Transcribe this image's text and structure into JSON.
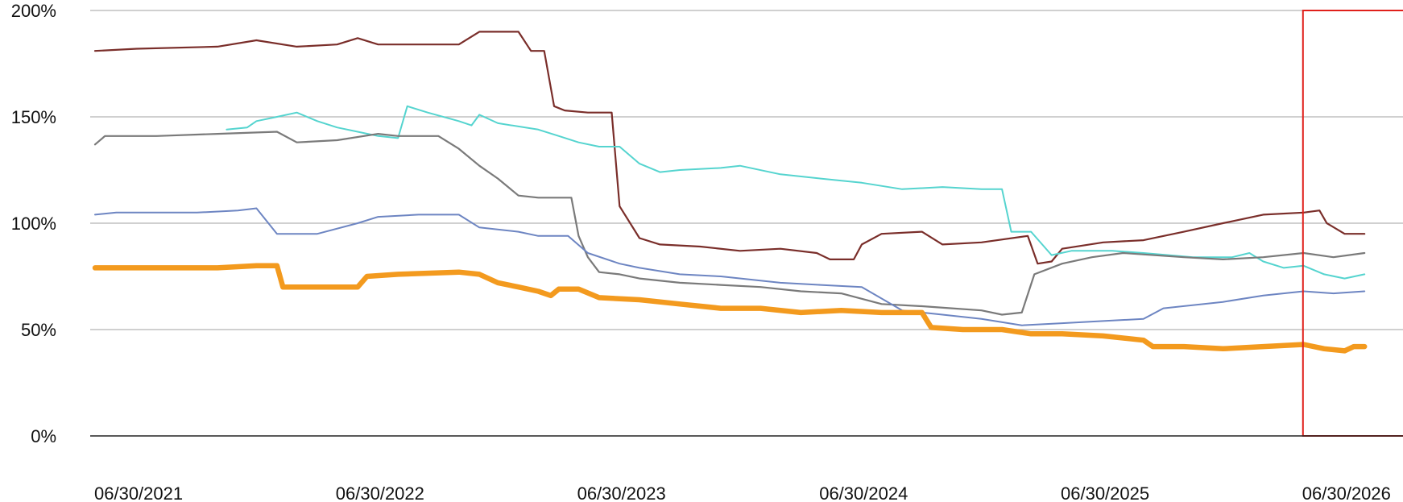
{
  "chart_data": {
    "type": "line",
    "title": "",
    "xlabel": "",
    "ylabel": "",
    "ylim": [
      0,
      200
    ],
    "xlim": [
      "2021-06-30",
      "2026-10-01"
    ],
    "grid": true,
    "y_ticks": [
      {
        "value": 0,
        "label": "0%"
      },
      {
        "value": 50,
        "label": "50%"
      },
      {
        "value": 100,
        "label": "100%"
      },
      {
        "value": 150,
        "label": "150%"
      },
      {
        "value": 200,
        "label": "200%"
      }
    ],
    "x_ticks": [
      {
        "value": "2021-06-30",
        "label": "06/30/2021"
      },
      {
        "value": "2022-06-30",
        "label": "06/30/2022"
      },
      {
        "value": "2023-06-30",
        "label": "06/30/2023"
      },
      {
        "value": "2024-06-30",
        "label": "06/30/2024"
      },
      {
        "value": "2025-06-30",
        "label": "06/30/2025"
      },
      {
        "value": "2026-06-30",
        "label": "06/30/2026"
      }
    ],
    "highlight_region": {
      "start": "2026-06-30",
      "end": "2026-10-01",
      "y_from": 0,
      "y_to": 200,
      "color": "#e0201b"
    },
    "series": [
      {
        "color": "#7a2e2a",
        "width": 2.2,
        "points": [
          [
            "2021-06-30",
            181
          ],
          [
            "2021-09-01",
            182
          ],
          [
            "2022-01-01",
            183
          ],
          [
            "2022-03-01",
            186
          ],
          [
            "2022-05-01",
            183
          ],
          [
            "2022-07-01",
            184
          ],
          [
            "2022-08-01",
            187
          ],
          [
            "2022-09-01",
            184
          ],
          [
            "2022-11-01",
            184
          ],
          [
            "2023-01-01",
            184
          ],
          [
            "2023-02-01",
            190
          ],
          [
            "2023-04-01",
            190
          ],
          [
            "2023-04-20",
            181
          ],
          [
            "2023-05-10",
            181
          ],
          [
            "2023-05-25",
            155
          ],
          [
            "2023-06-10",
            153
          ],
          [
            "2023-07-15",
            152
          ],
          [
            "2023-08-20",
            152
          ],
          [
            "2023-09-01",
            108
          ],
          [
            "2023-10-01",
            93
          ],
          [
            "2023-11-01",
            90
          ],
          [
            "2024-01-01",
            89
          ],
          [
            "2024-03-01",
            87
          ],
          [
            "2024-05-01",
            88
          ],
          [
            "2024-06-25",
            86
          ],
          [
            "2024-07-15",
            83
          ],
          [
            "2024-08-20",
            83
          ],
          [
            "2024-09-01",
            90
          ],
          [
            "2024-10-01",
            95
          ],
          [
            "2024-12-01",
            96
          ],
          [
            "2025-01-01",
            90
          ],
          [
            "2025-03-01",
            91
          ],
          [
            "2025-05-10",
            94
          ],
          [
            "2025-05-25",
            81
          ],
          [
            "2025-06-15",
            82
          ],
          [
            "2025-07-01",
            88
          ],
          [
            "2025-09-01",
            91
          ],
          [
            "2025-11-01",
            92
          ],
          [
            "2026-01-01",
            96
          ],
          [
            "2026-03-01",
            100
          ],
          [
            "2026-05-01",
            104
          ],
          [
            "2026-07-01",
            105
          ],
          [
            "2026-07-25",
            106
          ],
          [
            "2026-08-05",
            100
          ],
          [
            "2026-09-01",
            95
          ],
          [
            "2026-10-01",
            95
          ]
        ]
      },
      {
        "color": "#55d4cf",
        "width": 2.0,
        "points": [
          [
            "2022-01-15",
            144
          ],
          [
            "2022-02-15",
            145
          ],
          [
            "2022-03-01",
            148
          ],
          [
            "2022-04-01",
            150
          ],
          [
            "2022-05-01",
            152
          ],
          [
            "2022-06-01",
            148
          ],
          [
            "2022-07-01",
            145
          ],
          [
            "2022-08-01",
            143
          ],
          [
            "2022-09-01",
            141
          ],
          [
            "2022-10-01",
            140
          ],
          [
            "2022-10-15",
            155
          ],
          [
            "2022-11-15",
            152
          ],
          [
            "2023-01-01",
            148
          ],
          [
            "2023-01-20",
            146
          ],
          [
            "2023-02-01",
            151
          ],
          [
            "2023-03-01",
            147
          ],
          [
            "2023-05-01",
            144
          ],
          [
            "2023-06-01",
            141
          ],
          [
            "2023-07-01",
            138
          ],
          [
            "2023-08-01",
            136
          ],
          [
            "2023-09-01",
            136
          ],
          [
            "2023-10-01",
            128
          ],
          [
            "2023-11-01",
            124
          ],
          [
            "2023-12-01",
            125
          ],
          [
            "2024-02-01",
            126
          ],
          [
            "2024-03-01",
            127
          ],
          [
            "2024-05-01",
            123
          ],
          [
            "2024-07-01",
            121
          ],
          [
            "2024-09-01",
            119
          ],
          [
            "2024-11-01",
            116
          ],
          [
            "2025-01-01",
            117
          ],
          [
            "2025-03-01",
            116
          ],
          [
            "2025-04-01",
            116
          ],
          [
            "2025-04-15",
            96
          ],
          [
            "2025-05-15",
            96
          ],
          [
            "2025-06-15",
            85
          ],
          [
            "2025-07-15",
            87
          ],
          [
            "2025-09-15",
            87
          ],
          [
            "2025-11-01",
            86
          ],
          [
            "2026-01-15",
            84
          ],
          [
            "2026-03-15",
            84
          ],
          [
            "2026-04-10",
            86
          ],
          [
            "2026-05-01",
            82
          ],
          [
            "2026-06-01",
            79
          ],
          [
            "2026-07-01",
            80
          ],
          [
            "2026-08-01",
            76
          ],
          [
            "2026-09-01",
            74
          ],
          [
            "2026-10-01",
            76
          ]
        ]
      },
      {
        "color": "#7a7a7a",
        "width": 2.2,
        "points": [
          [
            "2021-06-30",
            137
          ],
          [
            "2021-07-15",
            141
          ],
          [
            "2021-10-01",
            141
          ],
          [
            "2022-01-01",
            142
          ],
          [
            "2022-04-01",
            143
          ],
          [
            "2022-05-01",
            138
          ],
          [
            "2022-07-01",
            139
          ],
          [
            "2022-09-01",
            142
          ],
          [
            "2022-10-01",
            141
          ],
          [
            "2022-11-01",
            141
          ],
          [
            "2022-12-01",
            141
          ],
          [
            "2023-01-01",
            135
          ],
          [
            "2023-02-01",
            127
          ],
          [
            "2023-03-01",
            121
          ],
          [
            "2023-04-01",
            113
          ],
          [
            "2023-05-01",
            112
          ],
          [
            "2023-06-01",
            112
          ],
          [
            "2023-06-20",
            112
          ],
          [
            "2023-07-01",
            94
          ],
          [
            "2023-07-15",
            84
          ],
          [
            "2023-08-01",
            77
          ],
          [
            "2023-09-01",
            76
          ],
          [
            "2023-10-01",
            74
          ],
          [
            "2023-12-01",
            72
          ],
          [
            "2024-02-01",
            71
          ],
          [
            "2024-04-01",
            70
          ],
          [
            "2024-06-01",
            68
          ],
          [
            "2024-08-01",
            67
          ],
          [
            "2024-10-01",
            62
          ],
          [
            "2024-12-01",
            61
          ],
          [
            "2025-01-15",
            60
          ],
          [
            "2025-03-01",
            59
          ],
          [
            "2025-04-01",
            57
          ],
          [
            "2025-05-01",
            58
          ],
          [
            "2025-05-20",
            76
          ],
          [
            "2025-07-01",
            81
          ],
          [
            "2025-08-15",
            84
          ],
          [
            "2025-10-01",
            86
          ],
          [
            "2026-01-01",
            84
          ],
          [
            "2026-03-01",
            83
          ],
          [
            "2026-05-01",
            84
          ],
          [
            "2026-07-01",
            86
          ],
          [
            "2026-08-15",
            84
          ],
          [
            "2026-10-01",
            86
          ]
        ]
      },
      {
        "color": "#6d85c2",
        "width": 2.0,
        "points": [
          [
            "2021-06-30",
            104
          ],
          [
            "2021-08-01",
            105
          ],
          [
            "2021-12-01",
            105
          ],
          [
            "2022-02-01",
            106
          ],
          [
            "2022-03-01",
            107
          ],
          [
            "2022-04-01",
            95
          ],
          [
            "2022-06-01",
            95
          ],
          [
            "2022-08-01",
            100
          ],
          [
            "2022-09-01",
            103
          ],
          [
            "2022-11-01",
            104
          ],
          [
            "2023-01-01",
            104
          ],
          [
            "2023-02-01",
            98
          ],
          [
            "2023-04-01",
            96
          ],
          [
            "2023-05-01",
            94
          ],
          [
            "2023-06-15",
            94
          ],
          [
            "2023-07-15",
            86
          ],
          [
            "2023-09-01",
            81
          ],
          [
            "2023-10-01",
            79
          ],
          [
            "2023-12-01",
            76
          ],
          [
            "2024-02-01",
            75
          ],
          [
            "2024-05-01",
            72
          ],
          [
            "2024-07-01",
            71
          ],
          [
            "2024-09-01",
            70
          ],
          [
            "2024-11-01",
            59
          ],
          [
            "2025-01-01",
            57
          ],
          [
            "2025-03-01",
            55
          ],
          [
            "2025-05-01",
            52
          ],
          [
            "2025-07-01",
            53
          ],
          [
            "2025-09-01",
            54
          ],
          [
            "2025-11-01",
            55
          ],
          [
            "2025-12-01",
            60
          ],
          [
            "2026-03-01",
            63
          ],
          [
            "2026-05-01",
            66
          ],
          [
            "2026-07-01",
            68
          ],
          [
            "2026-08-15",
            67
          ],
          [
            "2026-10-01",
            68
          ]
        ]
      },
      {
        "color": "#f39a1e",
        "width": 6.5,
        "points": [
          [
            "2021-06-30",
            79
          ],
          [
            "2021-10-01",
            79
          ],
          [
            "2022-01-01",
            79
          ],
          [
            "2022-03-01",
            80
          ],
          [
            "2022-04-01",
            80
          ],
          [
            "2022-04-10",
            70
          ],
          [
            "2022-07-01",
            70
          ],
          [
            "2022-08-01",
            70
          ],
          [
            "2022-08-15",
            75
          ],
          [
            "2022-10-01",
            76
          ],
          [
            "2023-01-01",
            77
          ],
          [
            "2023-02-01",
            76
          ],
          [
            "2023-03-01",
            72
          ],
          [
            "2023-04-01",
            70
          ],
          [
            "2023-05-01",
            68
          ],
          [
            "2023-05-20",
            66
          ],
          [
            "2023-06-01",
            69
          ],
          [
            "2023-07-01",
            69
          ],
          [
            "2023-08-01",
            65
          ],
          [
            "2023-10-01",
            64
          ],
          [
            "2023-12-01",
            62
          ],
          [
            "2024-02-01",
            60
          ],
          [
            "2024-04-01",
            60
          ],
          [
            "2024-06-01",
            58
          ],
          [
            "2024-08-01",
            59
          ],
          [
            "2024-10-01",
            58
          ],
          [
            "2024-12-01",
            58
          ],
          [
            "2024-12-15",
            51
          ],
          [
            "2025-02-01",
            50
          ],
          [
            "2025-04-01",
            50
          ],
          [
            "2025-05-15",
            48
          ],
          [
            "2025-07-01",
            48
          ],
          [
            "2025-09-01",
            47
          ],
          [
            "2025-11-01",
            45
          ],
          [
            "2025-11-15",
            42
          ],
          [
            "2026-01-01",
            42
          ],
          [
            "2026-03-01",
            41
          ],
          [
            "2026-05-01",
            42
          ],
          [
            "2026-07-01",
            43
          ],
          [
            "2026-08-01",
            41
          ],
          [
            "2026-09-01",
            40
          ],
          [
            "2026-09-15",
            42
          ],
          [
            "2026-10-01",
            42
          ]
        ]
      }
    ]
  }
}
